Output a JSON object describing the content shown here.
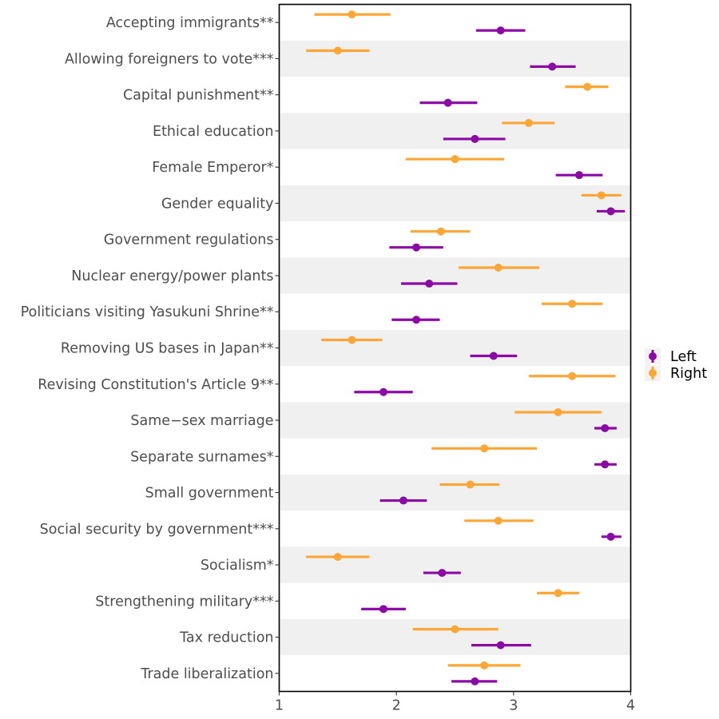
{
  "chart_data": {
    "type": "scatter",
    "title": "",
    "xlabel": "",
    "ylabel": "",
    "xlim": [
      1,
      4
    ],
    "xticks": [
      1,
      2,
      3,
      4
    ],
    "xtick_labels": [
      "1",
      "2",
      "3",
      "4"
    ],
    "legend_position": "right",
    "categories": [
      "Accepting immigrants**",
      "Allowing foreigners to vote***",
      "Capital punishment**",
      "Ethical education",
      "Female Emperor*",
      "Gender equality",
      "Government regulations",
      "Nuclear energy/power plants",
      "Politicians visiting Yasukuni Shrine**",
      "Removing US bases in Japan**",
      "Revising Constitution's Article 9**",
      "Same−sex marriage",
      "Separate surnames*",
      "Small government",
      "Social security by government***",
      "Socialism*",
      "Strengthening military***",
      "Tax reduction",
      "Trade liberalization"
    ],
    "series": [
      {
        "name": "Left",
        "color": "#8b0aa5",
        "values": [
          2.89,
          3.33,
          2.44,
          2.67,
          3.56,
          3.83,
          2.17,
          2.28,
          2.17,
          2.83,
          1.89,
          3.78,
          3.78,
          2.06,
          3.83,
          2.39,
          1.89,
          2.89,
          2.67
        ],
        "lower": [
          2.68,
          3.14,
          2.2,
          2.4,
          3.36,
          3.71,
          1.94,
          2.04,
          1.96,
          2.63,
          1.64,
          3.69,
          3.69,
          1.86,
          3.75,
          2.23,
          1.7,
          2.64,
          2.47
        ],
        "upper": [
          3.1,
          3.53,
          2.69,
          2.93,
          3.76,
          3.95,
          2.4,
          2.52,
          2.37,
          3.03,
          2.14,
          3.88,
          3.88,
          2.26,
          3.92,
          2.55,
          2.08,
          3.15,
          2.86
        ]
      },
      {
        "name": "Right",
        "color": "#fca636",
        "values": [
          1.62,
          1.5,
          3.63,
          3.13,
          2.5,
          3.75,
          2.38,
          2.87,
          3.5,
          1.62,
          3.5,
          3.38,
          2.75,
          2.63,
          2.87,
          1.5,
          3.38,
          2.5,
          2.75
        ],
        "lower": [
          1.3,
          1.23,
          3.44,
          2.9,
          2.08,
          3.58,
          2.12,
          2.53,
          3.24,
          1.36,
          3.13,
          3.01,
          2.3,
          2.37,
          2.58,
          1.23,
          3.2,
          2.14,
          2.44
        ],
        "upper": [
          1.95,
          1.77,
          3.81,
          3.35,
          2.92,
          3.92,
          2.63,
          3.22,
          3.76,
          1.88,
          3.87,
          3.75,
          3.2,
          2.88,
          3.17,
          1.77,
          3.56,
          2.87,
          3.06
        ]
      }
    ]
  }
}
